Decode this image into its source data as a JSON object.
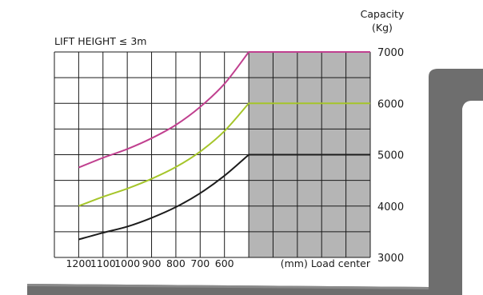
{
  "chart_data": {
    "type": "line",
    "title": "LIFT HEIGHT ≤ 3m",
    "xlabel": "(mm) Load center",
    "ylabel": [
      "Capacity",
      "(Kg)"
    ],
    "x_tick_labels": [
      "1200",
      "1100",
      "1000",
      "900",
      "800",
      "700",
      "600"
    ],
    "y_tick_labels": [
      "3000",
      "4000",
      "5000",
      "6000",
      "7000"
    ],
    "ylim": [
      3000,
      7000
    ],
    "series": [
      {
        "color": "#c0408f",
        "x": [
          1200,
          1100,
          1000,
          900,
          800,
          700,
          600,
          500,
          0
        ],
        "y": [
          4750,
          4940,
          5110,
          5320,
          5580,
          5930,
          6380,
          7000,
          7000
        ]
      },
      {
        "color": "#a5c52a",
        "x": [
          1200,
          1100,
          1000,
          900,
          800,
          700,
          600,
          500,
          0
        ],
        "y": [
          4000,
          4180,
          4340,
          4530,
          4760,
          5060,
          5460,
          6000,
          6000
        ]
      },
      {
        "color": "#1c1c1c",
        "x": [
          1200,
          1100,
          1000,
          900,
          800,
          700,
          600,
          500,
          0
        ],
        "y": [
          3350,
          3480,
          3600,
          3770,
          3980,
          4250,
          4590,
          5000,
          5000
        ]
      }
    ],
    "shaded_region": {
      "x_from": 500,
      "x_to": 0,
      "color": "#b5b5b5"
    },
    "grid": true
  }
}
